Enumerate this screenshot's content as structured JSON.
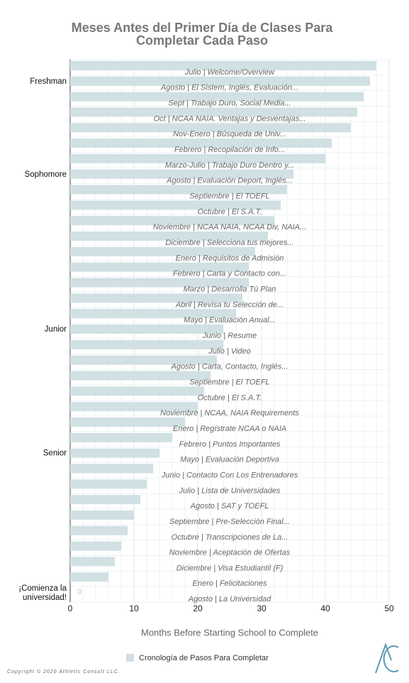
{
  "chart_data": {
    "type": "bar",
    "orientation": "horizontal",
    "title": [
      "Meses Antes del Primer Día de Clases Para",
      "Completar Cada Paso"
    ],
    "x_label": "Months Before Starting School to Complete",
    "categories": [
      "Julio | Welcome/Overview",
      "Agosto | El Sistem, Inglés, Evaluación...",
      "Sept | Trabajo Duro, Social Media...",
      "Oct | NCAA NAIA. Ventajas y Desventajas...",
      "Nov-Enero | Búsqueda de Univ...",
      "Febrero | Recopilación de Info...",
      "Marzo-Julio | Trabajo Duro Dentro y...",
      "Agosto | Evaluación Deport, Inglés...",
      "Septiembre | El TOEFL",
      "Octubre | El S.A.T.",
      "Noviembre | NCAA NAIA, NCAA Div, NAIA...",
      "Diciembre | Selecciona tus mejores...",
      "Enero |  Requisitos de Admisión",
      "Febrero | Carta y Contacto con...",
      "Marzo | Desarrolla Tú Plan",
      "Abril | Revisa tu Selección de...",
      "Mayo | Evaluación Anual...",
      "Junio | Resume",
      "Julio | Video",
      "Agosto | Carta, Contacto, Inglés...",
      "Septiembre | El TOEFL",
      "Octubre | El S.A.T.",
      "Noviembre | NCAA, NAIA Requirements",
      "Enero | Regístrate NCAA o NAIA",
      "Febrero | Puntos Importantes",
      "Mayo | Evaluación Deportiva",
      "Junio | Contacto Con Los Entrenadores",
      "Julio | Lista de Universidades",
      "Agosto | SAT y TOEFL",
      "Septiembre | Pre-Selección Final...",
      "Octubre | Transcripciones de La...",
      "Noviembre | Aceptación de Ofertas",
      "Diciembre | Visa Estudiantil (F)",
      "Enero | Felicitaciones",
      "Agosto | La Universidad"
    ],
    "group_labels": [
      null,
      "Freshman",
      null,
      null,
      null,
      null,
      null,
      "Sophomore",
      null,
      null,
      null,
      null,
      null,
      null,
      null,
      null,
      null,
      "Junior",
      null,
      null,
      null,
      null,
      null,
      null,
      null,
      "Senior",
      null,
      null,
      null,
      null,
      null,
      null,
      null,
      null,
      "¡Comienza la universidad!"
    ],
    "series": [
      {
        "name": "Cronología de Pasos Para Completar",
        "color": "#d0e0e3",
        "values": [
          48,
          47,
          46,
          45,
          44,
          41,
          40,
          35,
          34,
          33,
          32,
          31,
          29,
          28,
          28,
          27,
          26,
          24,
          24,
          23,
          22,
          21,
          20,
          18,
          16,
          14,
          13,
          12,
          11,
          10,
          9,
          8,
          7,
          6,
          0
        ]
      }
    ],
    "xlim": [
      0,
      50
    ],
    "xticks": [
      0,
      10,
      20,
      30,
      40,
      50
    ],
    "grid": true,
    "legend": "bottom"
  },
  "footer": {
    "copyright": "Copyright © 2020 Athletic Consult LLC."
  }
}
